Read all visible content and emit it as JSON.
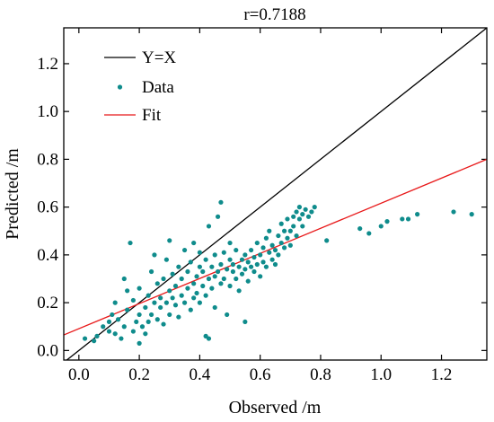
{
  "chart_data": {
    "type": "scatter",
    "title": "r=0.7188",
    "xlabel": "Observed /m",
    "ylabel": "Predicted /m",
    "xlim": [
      -0.05,
      1.35
    ],
    "ylim": [
      -0.04,
      1.35
    ],
    "x_ticks": [
      "0.0",
      "0.2",
      "0.4",
      "0.6",
      "0.8",
      "1.0",
      "1.2"
    ],
    "y_ticks": [
      "0.0",
      "0.2",
      "0.4",
      "0.6",
      "0.8",
      "1.0",
      "1.2"
    ],
    "legend_position": "top-left",
    "grid": false,
    "series": [
      {
        "name": "Y=X",
        "kind": "line",
        "color": "#000000",
        "x": [
          -0.05,
          1.35
        ],
        "y": [
          -0.05,
          1.35
        ]
      },
      {
        "name": "Data",
        "kind": "scatter",
        "color": "#0f8c8c",
        "points": [
          [
            0.02,
            0.05
          ],
          [
            0.05,
            0.04
          ],
          [
            0.06,
            0.06
          ],
          [
            0.08,
            0.1
          ],
          [
            0.1,
            0.12
          ],
          [
            0.1,
            0.08
          ],
          [
            0.11,
            0.15
          ],
          [
            0.12,
            0.07
          ],
          [
            0.12,
            0.2
          ],
          [
            0.13,
            0.13
          ],
          [
            0.14,
            0.05
          ],
          [
            0.15,
            0.1
          ],
          [
            0.15,
            0.3
          ],
          [
            0.16,
            0.25
          ],
          [
            0.16,
            0.17
          ],
          [
            0.17,
            0.45
          ],
          [
            0.18,
            0.08
          ],
          [
            0.18,
            0.21
          ],
          [
            0.19,
            0.12
          ],
          [
            0.2,
            0.15
          ],
          [
            0.2,
            0.03
          ],
          [
            0.2,
            0.26
          ],
          [
            0.21,
            0.1
          ],
          [
            0.22,
            0.18
          ],
          [
            0.22,
            0.07
          ],
          [
            0.23,
            0.12
          ],
          [
            0.23,
            0.23
          ],
          [
            0.24,
            0.33
          ],
          [
            0.24,
            0.15
          ],
          [
            0.25,
            0.2
          ],
          [
            0.25,
            0.4
          ],
          [
            0.26,
            0.13
          ],
          [
            0.26,
            0.28
          ],
          [
            0.27,
            0.22
          ],
          [
            0.27,
            0.18
          ],
          [
            0.28,
            0.3
          ],
          [
            0.28,
            0.11
          ],
          [
            0.29,
            0.2
          ],
          [
            0.29,
            0.38
          ],
          [
            0.3,
            0.25
          ],
          [
            0.3,
            0.15
          ],
          [
            0.3,
            0.46
          ],
          [
            0.31,
            0.22
          ],
          [
            0.31,
            0.32
          ],
          [
            0.32,
            0.19
          ],
          [
            0.32,
            0.27
          ],
          [
            0.33,
            0.14
          ],
          [
            0.33,
            0.35
          ],
          [
            0.34,
            0.23
          ],
          [
            0.34,
            0.3
          ],
          [
            0.35,
            0.2
          ],
          [
            0.35,
            0.42
          ],
          [
            0.36,
            0.26
          ],
          [
            0.36,
            0.33
          ],
          [
            0.37,
            0.17
          ],
          [
            0.37,
            0.37
          ],
          [
            0.38,
            0.28
          ],
          [
            0.38,
            0.22
          ],
          [
            0.38,
            0.45
          ],
          [
            0.39,
            0.31
          ],
          [
            0.39,
            0.24
          ],
          [
            0.4,
            0.35
          ],
          [
            0.4,
            0.2
          ],
          [
            0.4,
            0.41
          ],
          [
            0.41,
            0.27
          ],
          [
            0.41,
            0.33
          ],
          [
            0.42,
            0.06
          ],
          [
            0.42,
            0.38
          ],
          [
            0.42,
            0.23
          ],
          [
            0.43,
            0.3
          ],
          [
            0.43,
            0.05
          ],
          [
            0.43,
            0.52
          ],
          [
            0.44,
            0.35
          ],
          [
            0.44,
            0.26
          ],
          [
            0.45,
            0.4
          ],
          [
            0.45,
            0.31
          ],
          [
            0.45,
            0.18
          ],
          [
            0.46,
            0.33
          ],
          [
            0.46,
            0.56
          ],
          [
            0.47,
            0.36
          ],
          [
            0.47,
            0.28
          ],
          [
            0.47,
            0.62
          ],
          [
            0.48,
            0.41
          ],
          [
            0.48,
            0.3
          ],
          [
            0.49,
            0.34
          ],
          [
            0.49,
            0.15
          ],
          [
            0.5,
            0.38
          ],
          [
            0.5,
            0.27
          ],
          [
            0.5,
            0.45
          ],
          [
            0.51,
            0.33
          ],
          [
            0.51,
            0.36
          ],
          [
            0.52,
            0.3
          ],
          [
            0.52,
            0.42
          ],
          [
            0.53,
            0.35
          ],
          [
            0.53,
            0.25
          ],
          [
            0.54,
            0.38
          ],
          [
            0.54,
            0.32
          ],
          [
            0.55,
            0.4
          ],
          [
            0.55,
            0.34
          ],
          [
            0.55,
            0.12
          ],
          [
            0.56,
            0.37
          ],
          [
            0.56,
            0.29
          ],
          [
            0.57,
            0.42
          ],
          [
            0.57,
            0.35
          ],
          [
            0.58,
            0.39
          ],
          [
            0.58,
            0.33
          ],
          [
            0.59,
            0.45
          ],
          [
            0.59,
            0.36
          ],
          [
            0.6,
            0.4
          ],
          [
            0.6,
            0.31
          ],
          [
            0.61,
            0.43
          ],
          [
            0.61,
            0.37
          ],
          [
            0.62,
            0.47
          ],
          [
            0.62,
            0.35
          ],
          [
            0.63,
            0.41
          ],
          [
            0.63,
            0.5
          ],
          [
            0.64,
            0.38
          ],
          [
            0.64,
            0.44
          ],
          [
            0.65,
            0.42
          ],
          [
            0.65,
            0.36
          ],
          [
            0.66,
            0.48
          ],
          [
            0.66,
            0.4
          ],
          [
            0.67,
            0.45
          ],
          [
            0.67,
            0.53
          ],
          [
            0.68,
            0.43
          ],
          [
            0.68,
            0.5
          ],
          [
            0.69,
            0.47
          ],
          [
            0.69,
            0.55
          ],
          [
            0.7,
            0.5
          ],
          [
            0.7,
            0.44
          ],
          [
            0.71,
            0.56
          ],
          [
            0.71,
            0.52
          ],
          [
            0.72,
            0.58
          ],
          [
            0.72,
            0.48
          ],
          [
            0.73,
            0.55
          ],
          [
            0.73,
            0.6
          ],
          [
            0.74,
            0.52
          ],
          [
            0.74,
            0.57
          ],
          [
            0.75,
            0.59
          ],
          [
            0.76,
            0.56
          ],
          [
            0.77,
            0.58
          ],
          [
            0.78,
            0.6
          ],
          [
            0.82,
            0.46
          ],
          [
            0.93,
            0.51
          ],
          [
            0.96,
            0.49
          ],
          [
            1.0,
            0.52
          ],
          [
            1.02,
            0.54
          ],
          [
            1.07,
            0.55
          ],
          [
            1.09,
            0.55
          ],
          [
            1.12,
            0.57
          ],
          [
            1.24,
            0.58
          ],
          [
            1.3,
            0.57
          ]
        ]
      },
      {
        "name": "Fit",
        "kind": "line",
        "color": "#e8191a",
        "x": [
          -0.05,
          1.35
        ],
        "y": [
          0.065,
          0.8
        ]
      }
    ]
  }
}
